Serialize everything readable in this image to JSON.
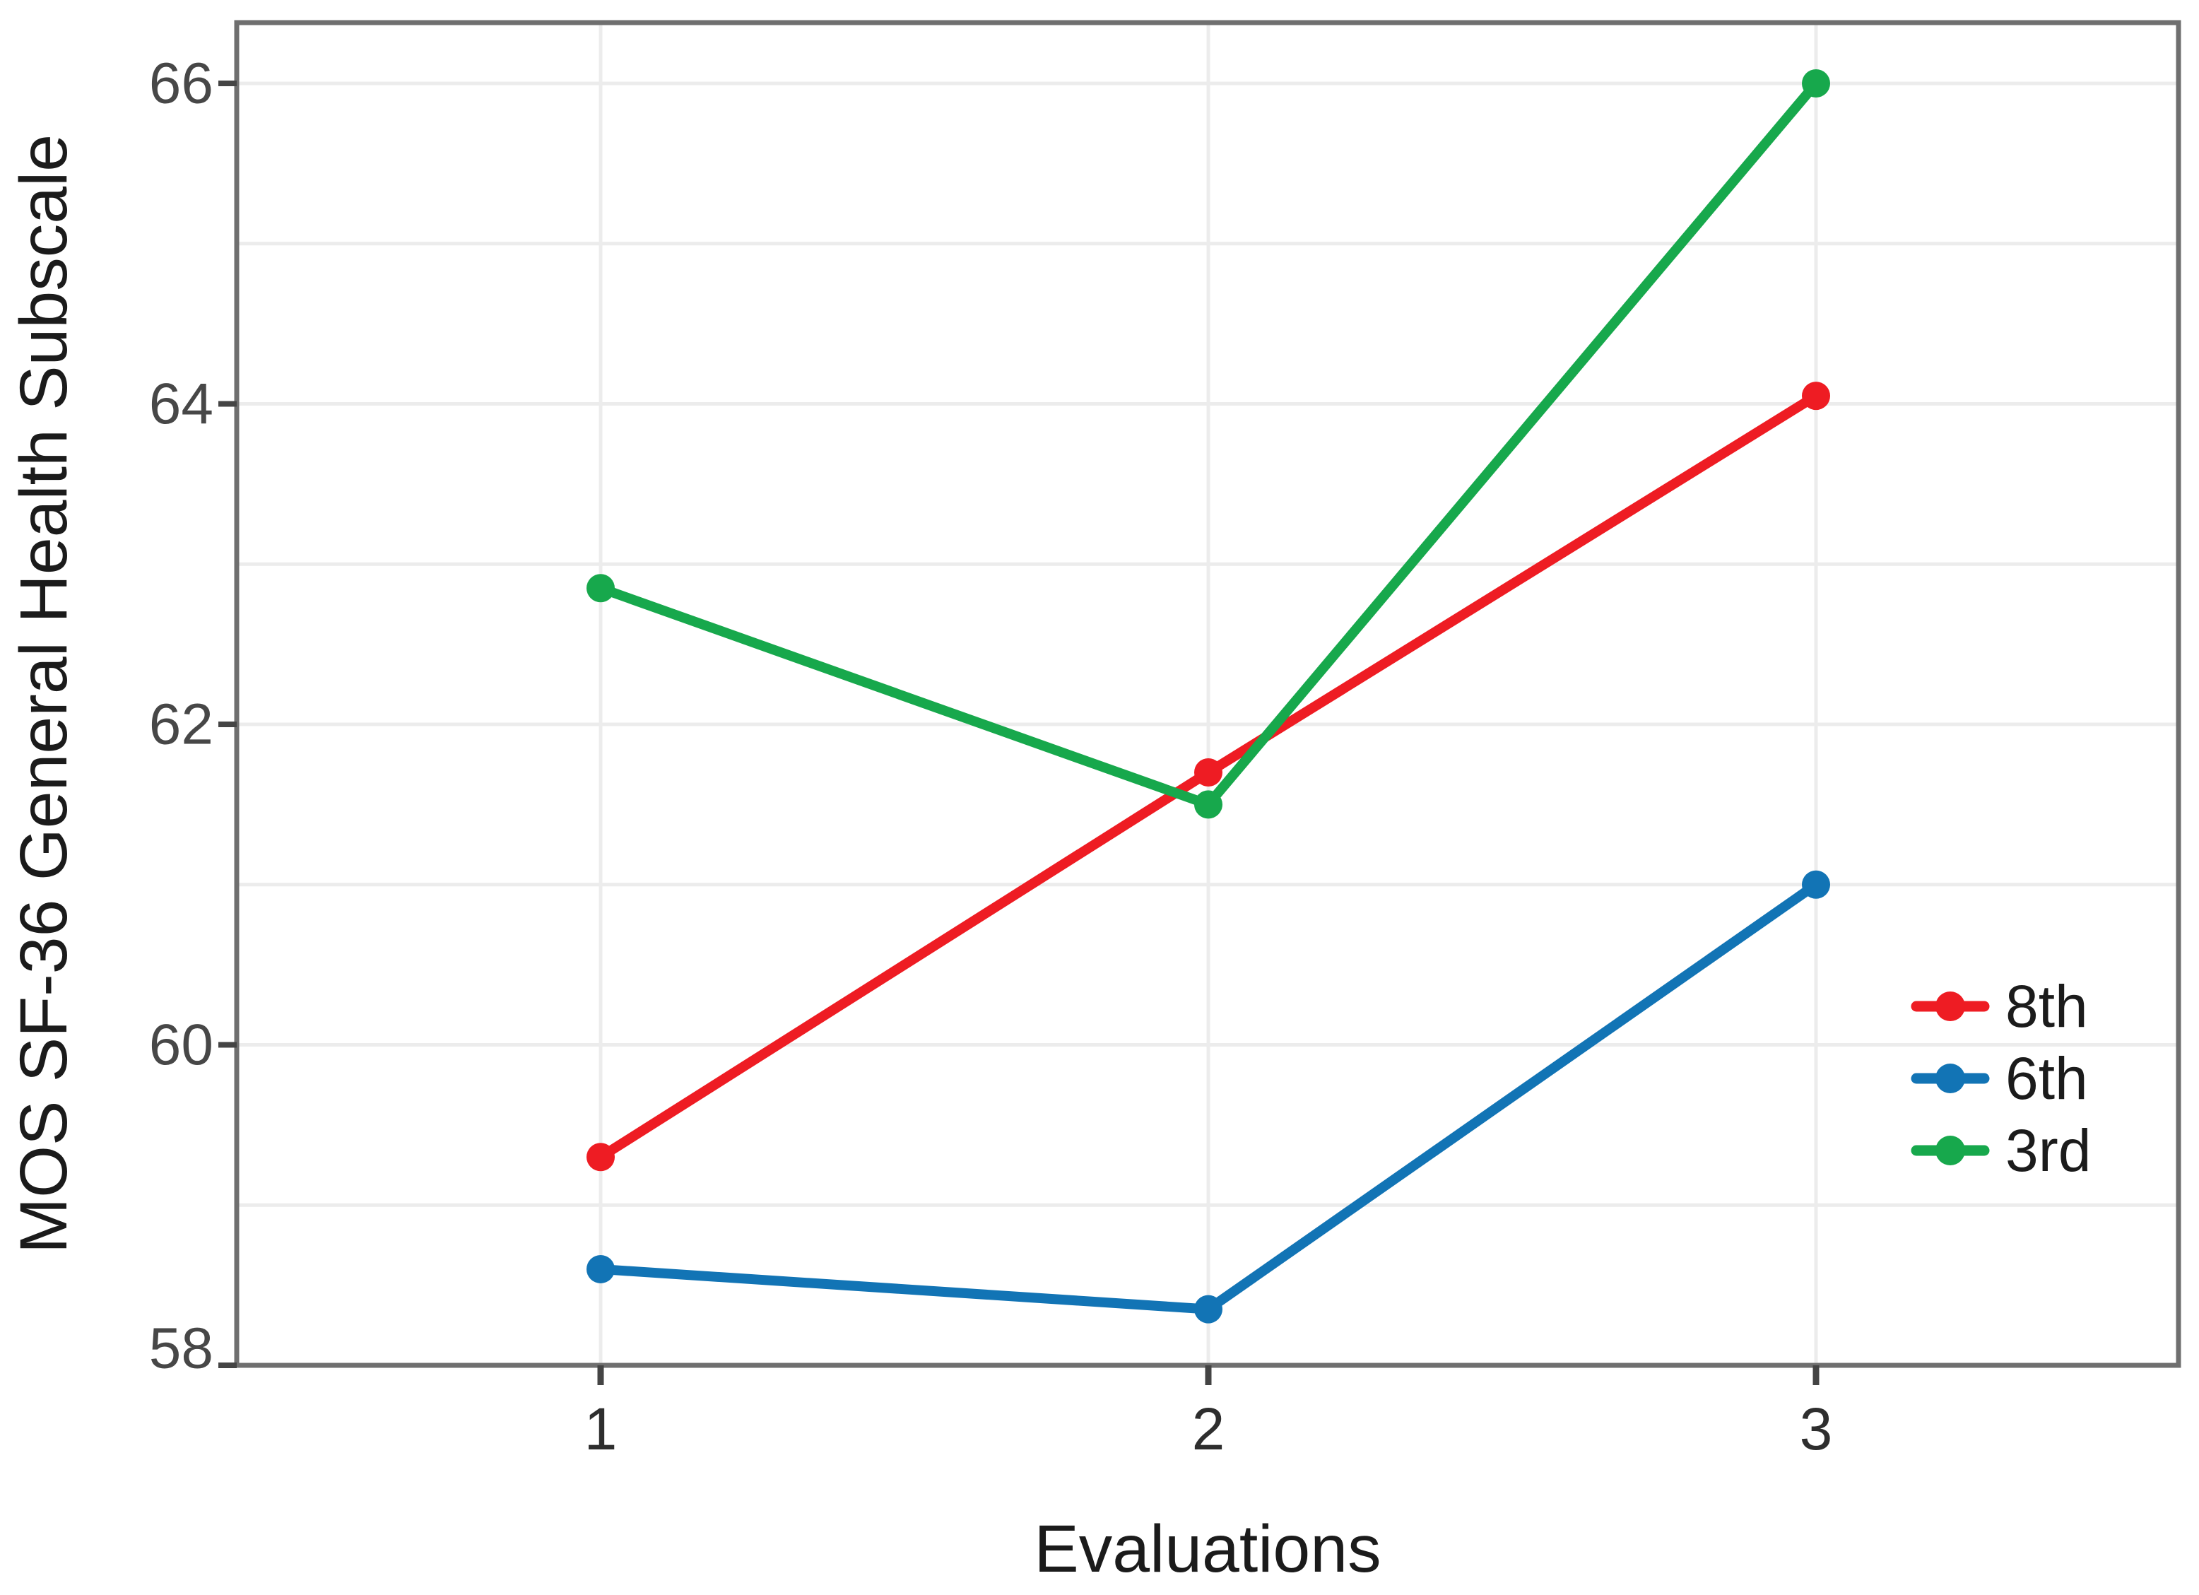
{
  "figure": {
    "background_color": "#ffffff",
    "frame_color": "#6f6f6f",
    "gridline_color": "#ececec",
    "tick_color": "#444444"
  },
  "axes": {
    "y_title": "MOS SF-36 General Health Subscale",
    "x_title": "Evaluations",
    "y_tick_labels": [
      "66",
      "64",
      "62",
      "60",
      "58"
    ],
    "x_tick_labels": [
      "1",
      "2",
      "3"
    ]
  },
  "legend": {
    "items": [
      {
        "label": "8th",
        "color": "#ee1c23"
      },
      {
        "label": "6th",
        "color": "#1274b5"
      },
      {
        "label": "3rd",
        "color": "#17a84c"
      }
    ]
  },
  "chart_data": {
    "type": "line",
    "x": [
      1,
      2,
      3
    ],
    "x_tick_labels": [
      "1",
      "2",
      "3"
    ],
    "series": [
      {
        "name": "8th",
        "color": "#ee1c23",
        "values": [
          59.3,
          61.7,
          64.05
        ]
      },
      {
        "name": "6th",
        "color": "#1274b5",
        "values": [
          58.6,
          58.35,
          61.0
        ]
      },
      {
        "name": "3rd",
        "color": "#17a84c",
        "values": [
          62.85,
          61.5,
          66.0
        ]
      }
    ],
    "title": "",
    "xlabel": "Evaluations",
    "ylabel": "MOS SF-36 General Health Subscale",
    "ylim": [
      58,
      66.4
    ],
    "yticks_labeled": [
      66,
      64,
      62,
      60,
      58
    ],
    "gridlines": "horizontal every 1 unit, vertical at each x tick",
    "marker": "circle",
    "legend_position": "inside right"
  }
}
